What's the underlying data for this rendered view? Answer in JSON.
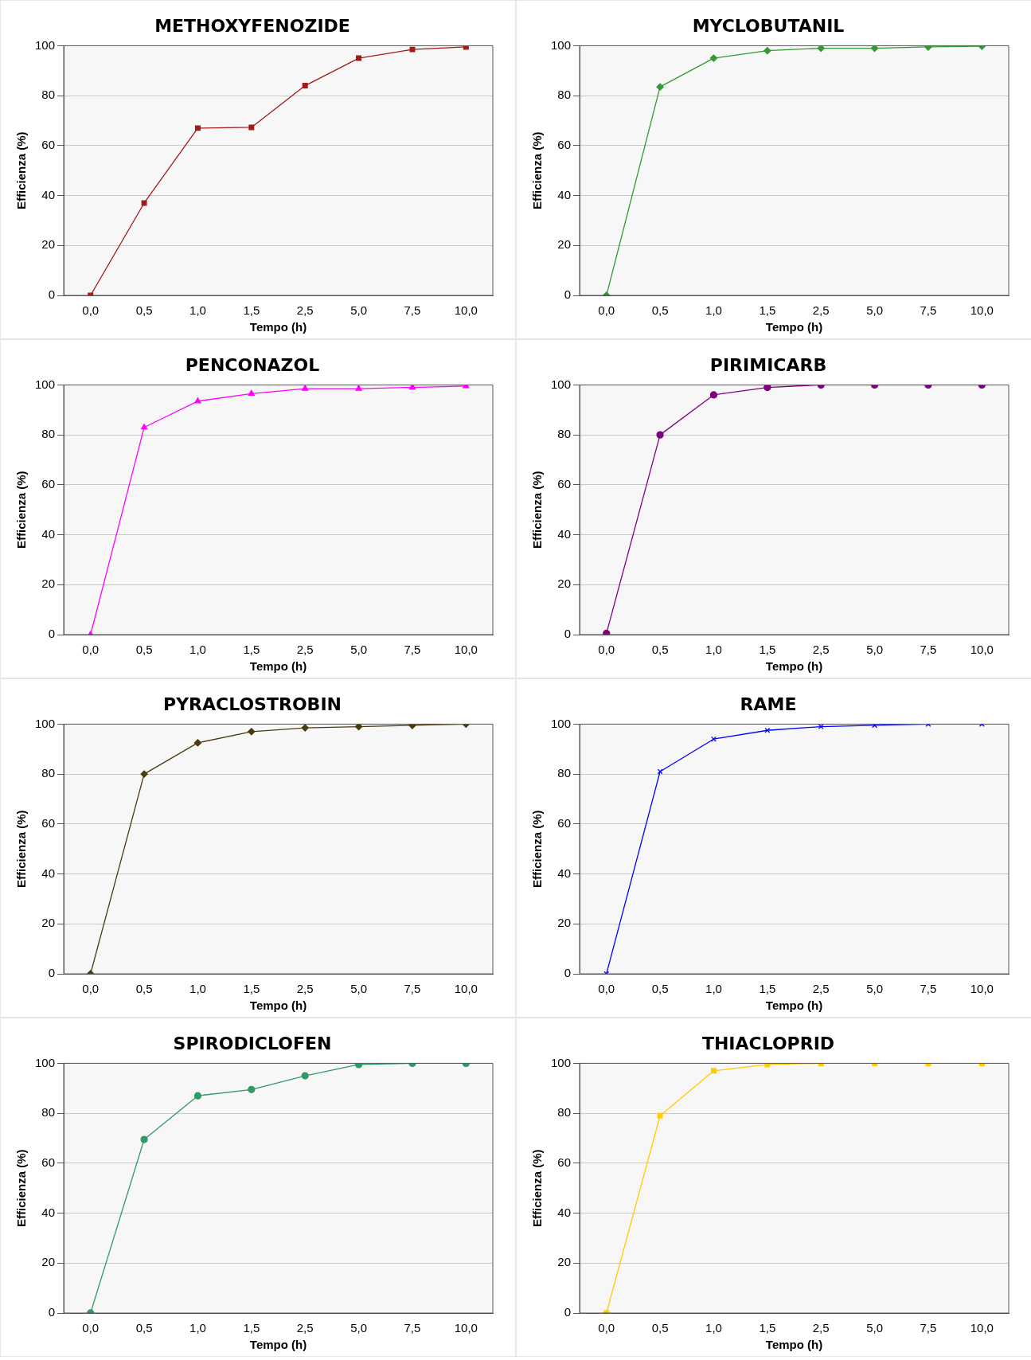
{
  "chart_data": [
    {
      "type": "line",
      "title": "METHOXYFENOZIDE",
      "xlabel": "Tempo (h)",
      "ylabel": "Efficienza (%)",
      "categories": [
        "0,0",
        "0,5",
        "1,0",
        "1,5",
        "2,5",
        "5,0",
        "7,5",
        "10,0"
      ],
      "series": [
        {
          "color": "#a11a1a",
          "values": [
            0,
            37,
            67,
            67.3,
            84,
            95,
            98.5,
            99.5
          ]
        }
      ],
      "ylim": [
        0,
        100
      ],
      "yticks": [
        0,
        20,
        40,
        60,
        80,
        100
      ],
      "grid": "y",
      "marker": "square",
      "legend": false
    },
    {
      "type": "line",
      "title": "MYCLOBUTANIL",
      "xlabel": "Tempo (h)",
      "ylabel": "Efficienza (%)",
      "categories": [
        "0,0",
        "0,5",
        "1,0",
        "1,5",
        "2,5",
        "5,0",
        "7,5",
        "10,0"
      ],
      "series": [
        {
          "color": "#339933",
          "values": [
            0,
            83.5,
            95,
            98,
            99,
            99,
            99.5,
            99.8
          ]
        }
      ],
      "ylim": [
        0,
        100
      ],
      "yticks": [
        0,
        20,
        40,
        60,
        80,
        100
      ],
      "grid": "y",
      "marker": "diamond",
      "legend": false
    },
    {
      "type": "line",
      "title": "PENCONAZOL",
      "xlabel": "Tempo (h)",
      "ylabel": "Efficienza (%)",
      "categories": [
        "0,0",
        "0,5",
        "1,0",
        "1,5",
        "2,5",
        "5,0",
        "7,5",
        "10,0"
      ],
      "series": [
        {
          "color": "#ff00ff",
          "values": [
            0,
            83,
            93.5,
            96.5,
            98.5,
            98.5,
            99,
            99.5
          ]
        }
      ],
      "ylim": [
        0,
        100
      ],
      "yticks": [
        0,
        20,
        40,
        60,
        80,
        100
      ],
      "grid": "y",
      "marker": "triangle",
      "legend": false
    },
    {
      "type": "line",
      "title": "PIRIMICARB",
      "xlabel": "Tempo (h)",
      "ylabel": "Efficienza (%)",
      "categories": [
        "0,0",
        "0,5",
        "1,0",
        "1,5",
        "2,5",
        "5,0",
        "7,5",
        "10,0"
      ],
      "series": [
        {
          "color": "#800080",
          "values": [
            0.5,
            80,
            96,
            99,
            100,
            100,
            100,
            100
          ]
        }
      ],
      "ylim": [
        0,
        100
      ],
      "yticks": [
        0,
        20,
        40,
        60,
        80,
        100
      ],
      "grid": "y",
      "marker": "circle",
      "legend": false
    },
    {
      "type": "line",
      "title": "PYRACLOSTROBIN",
      "xlabel": "Tempo (h)",
      "ylabel": "Efficienza (%)",
      "categories": [
        "0,0",
        "0,5",
        "1,0",
        "1,5",
        "2,5",
        "5,0",
        "7,5",
        "10,0"
      ],
      "series": [
        {
          "color": "#4a3a10",
          "values": [
            0,
            80,
            92.5,
            97,
            98.5,
            99,
            99.5,
            100
          ]
        }
      ],
      "ylim": [
        0,
        100
      ],
      "yticks": [
        0,
        20,
        40,
        60,
        80,
        100
      ],
      "grid": "y",
      "marker": "diamond",
      "legend": false
    },
    {
      "type": "line",
      "title": "RAME",
      "xlabel": "Tempo (h)",
      "ylabel": "Efficienza (%)",
      "categories": [
        "0,0",
        "0,5",
        "1,0",
        "1,5",
        "2,5",
        "5,0",
        "7,5",
        "10,0"
      ],
      "series": [
        {
          "color": "#0000ff",
          "values": [
            0,
            81,
            94,
            97.5,
            99,
            99.5,
            100,
            100
          ]
        }
      ],
      "ylim": [
        0,
        100
      ],
      "yticks": [
        0,
        20,
        40,
        60,
        80,
        100
      ],
      "grid": "y",
      "marker": "cross",
      "legend": false
    },
    {
      "type": "line",
      "title": "SPIRODICLOFEN",
      "xlabel": "Tempo (h)",
      "ylabel": "Efficienza (%)",
      "categories": [
        "0,0",
        "0,5",
        "1,0",
        "1,5",
        "2,5",
        "5,0",
        "7,5",
        "10,0"
      ],
      "series": [
        {
          "color": "#339966",
          "values": [
            0,
            69.5,
            87,
            89.5,
            95,
            99.5,
            100,
            100
          ]
        }
      ],
      "ylim": [
        0,
        100
      ],
      "yticks": [
        0,
        20,
        40,
        60,
        80,
        100
      ],
      "grid": "y",
      "marker": "circle",
      "legend": false
    },
    {
      "type": "line",
      "title": "THIACLOPRID",
      "xlabel": "Tempo (h)",
      "ylabel": "Efficienza (%)",
      "categories": [
        "0,0",
        "0,5",
        "1,0",
        "1,5",
        "2,5",
        "5,0",
        "7,5",
        "10,0"
      ],
      "series": [
        {
          "color": "#ffcc00",
          "values": [
            0,
            79,
            97,
            99.5,
            100,
            100,
            100,
            100
          ]
        }
      ],
      "ylim": [
        0,
        100
      ],
      "yticks": [
        0,
        20,
        40,
        60,
        80,
        100
      ],
      "grid": "y",
      "marker": "square",
      "legend": false
    }
  ]
}
